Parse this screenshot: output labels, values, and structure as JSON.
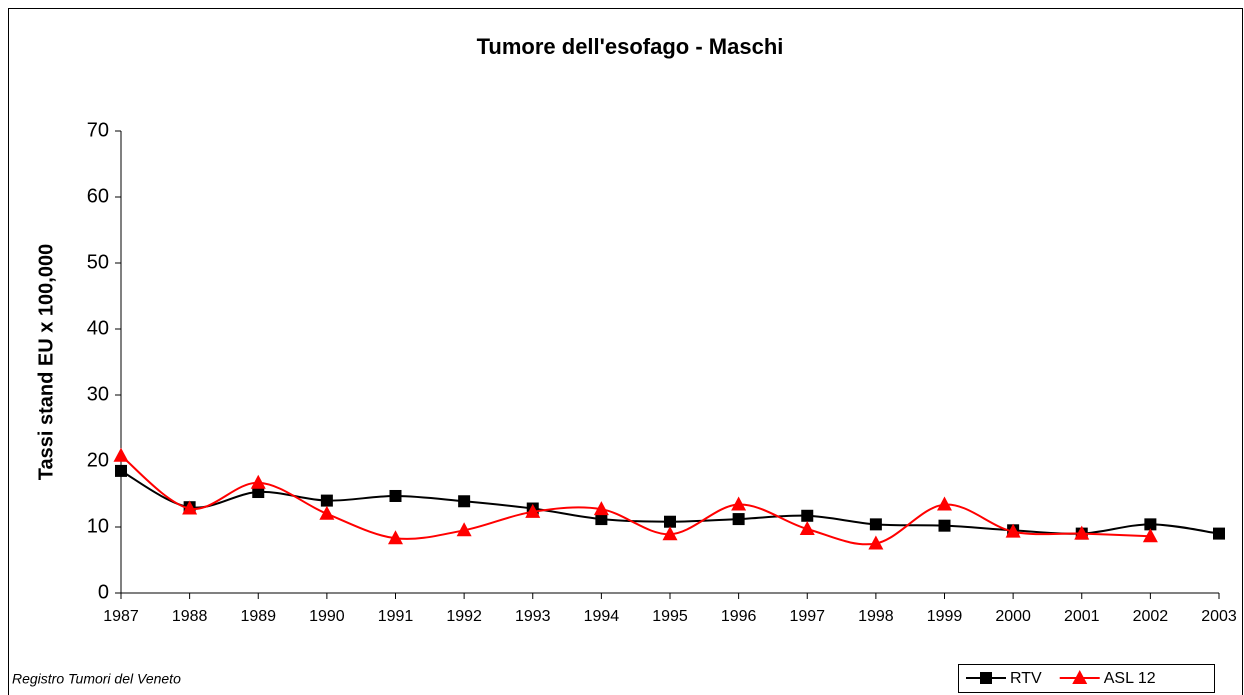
{
  "chart_data": {
    "type": "line",
    "title": "Tumore dell'esofago - Maschi",
    "y_label": "Tassi stand EU x 100,000",
    "source": "Registro Tumori del Veneto",
    "categories": [
      "1987",
      "1988",
      "1989",
      "1990",
      "1991",
      "1992",
      "1993",
      "1994",
      "1995",
      "1996",
      "1997",
      "1998",
      "1999",
      "2000",
      "2001",
      "2002",
      "2003"
    ],
    "series": [
      {
        "name": "RTV",
        "color": "#000000",
        "marker": "square",
        "values": [
          18.5,
          13.0,
          15.3,
          14.0,
          14.7,
          13.9,
          12.8,
          11.2,
          10.8,
          11.2,
          11.7,
          10.4,
          10.2,
          9.5,
          9.0,
          10.4,
          9.0
        ]
      },
      {
        "name": "ASL 12",
        "color": "#ff0000",
        "marker": "triangle",
        "values": [
          20.8,
          12.8,
          16.7,
          12.0,
          8.3,
          9.5,
          12.3,
          12.7,
          8.9,
          13.4,
          9.7,
          7.5,
          13.4,
          9.3,
          9.0,
          8.6,
          null
        ]
      }
    ],
    "ylim": [
      0,
      70
    ],
    "yticks": [
      0,
      10,
      20,
      30,
      40,
      50,
      60,
      70
    ],
    "smooth": true,
    "legend": "bottom-right"
  }
}
